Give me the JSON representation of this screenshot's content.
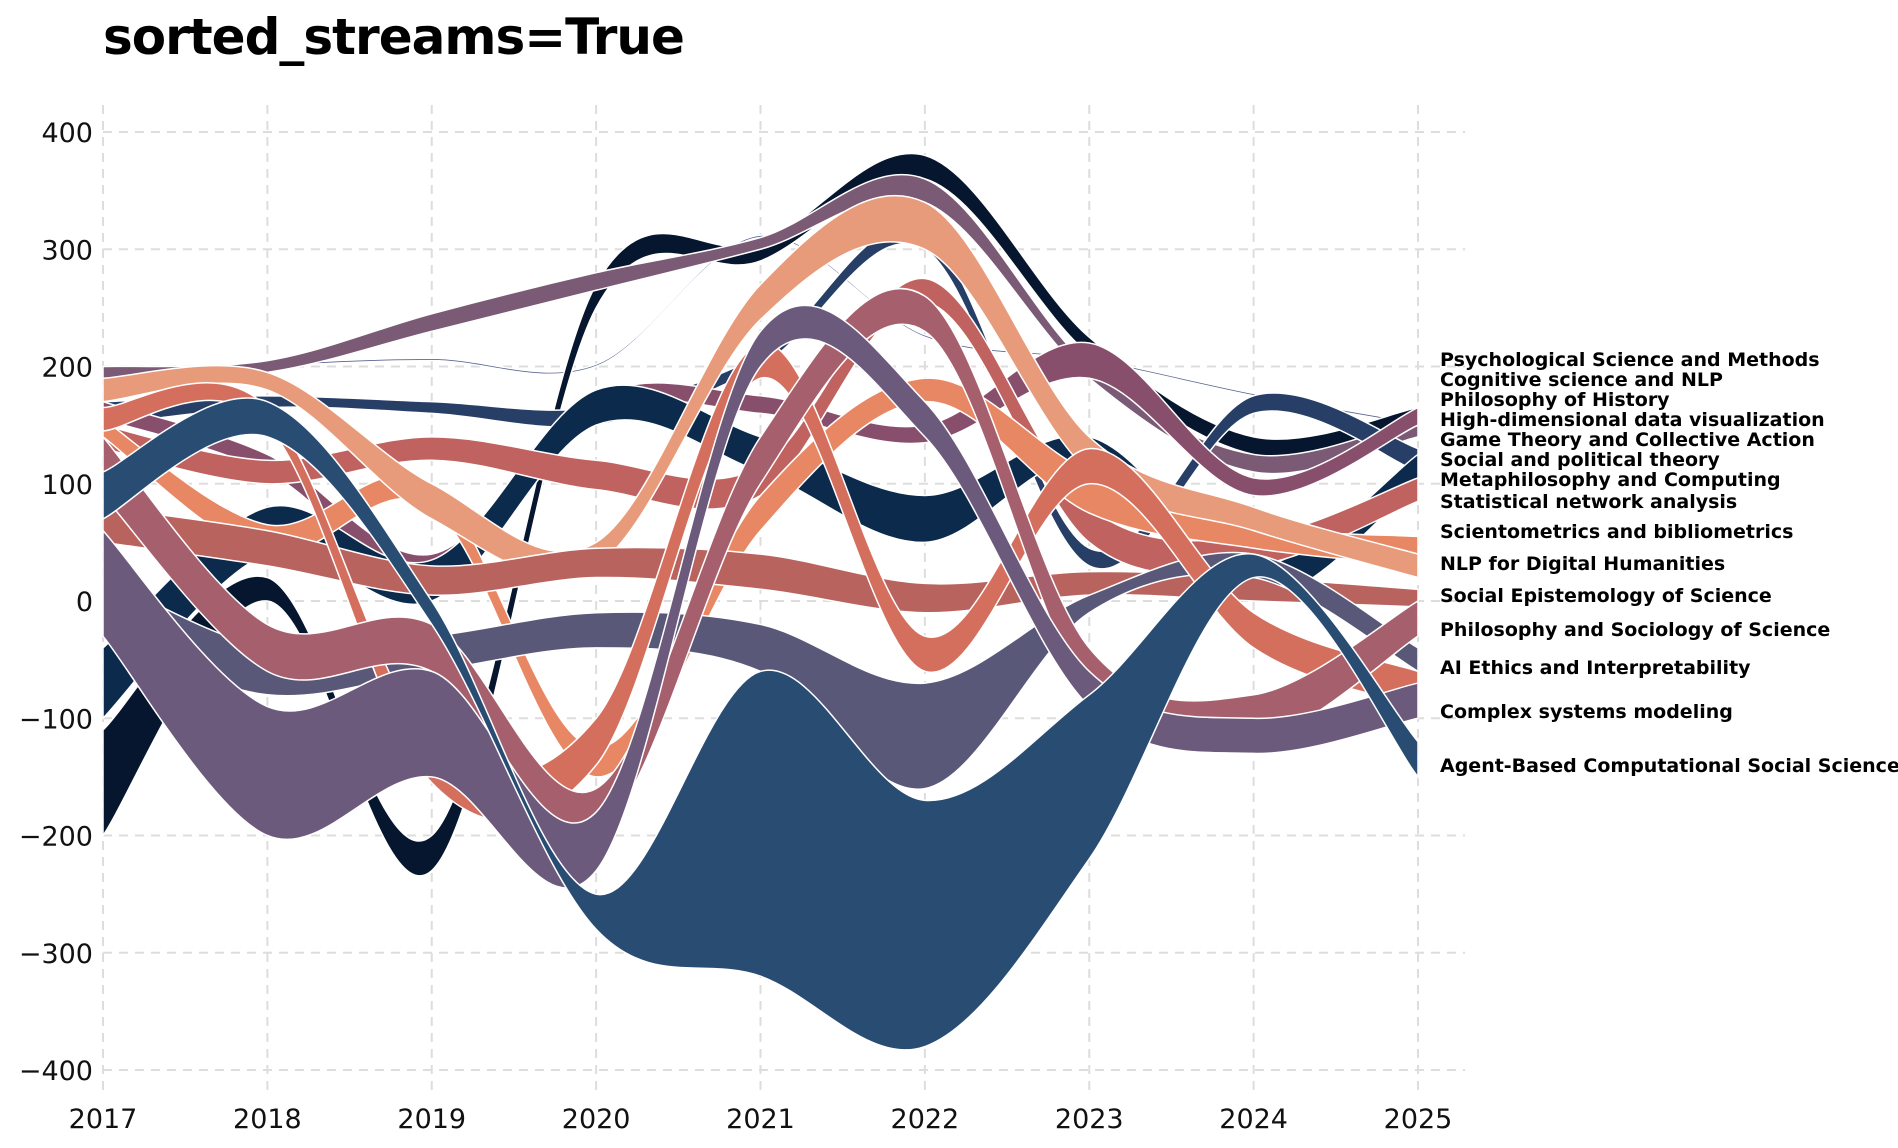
{
  "title": "sorted_streams=True",
  "chart_data": {
    "type": "area",
    "subtype": "streamgraph (sorted streams, smoothed bands)",
    "title": "sorted_streams=True",
    "xlabel": "",
    "ylabel": "",
    "x": [
      2017,
      2018,
      2019,
      2020,
      2021,
      2022,
      2023,
      2024,
      2025
    ],
    "xlim": [
      2017,
      2025.3
    ],
    "ylim": [
      -420,
      420
    ],
    "x_ticks": [
      "2017",
      "2018",
      "2019",
      "2020",
      "2021",
      "2022",
      "2023",
      "2024",
      "2025"
    ],
    "y_ticks": [
      400,
      300,
      200,
      100,
      0,
      -100,
      -200,
      -300,
      -400
    ],
    "y_tick_labels": [
      "400",
      "300",
      "200",
      "100",
      "0",
      "−100",
      "−200",
      "−300",
      "−400"
    ],
    "grid": true,
    "legend": "direct labels at right end of streams",
    "series": [
      {
        "name": "Psychological Science and Methods",
        "color": "#5b6690",
        "lower": [
          190,
          200,
          205,
          200,
          310,
          225,
          205,
          175,
          150
        ],
        "upper": [
          192,
          202,
          207,
          202,
          312,
          227,
          207,
          177,
          152
        ]
      },
      {
        "name": "Cognitive science and NLP",
        "color": "#05162e",
        "lower": [
          -200,
          0,
          -230,
          250,
          290,
          360,
          210,
          125,
          150
        ],
        "upper": [
          -110,
          20,
          -200,
          270,
          305,
          380,
          225,
          140,
          165
        ]
      },
      {
        "name": "Philosophy of History",
        "color": "#7a5a74",
        "lower": [
          190,
          195,
          230,
          265,
          300,
          340,
          190,
          110,
          140
        ],
        "upper": [
          200,
          205,
          245,
          280,
          310,
          360,
          200,
          125,
          155
        ]
      },
      {
        "name": "High-dimensional data visualization",
        "color": "#273f66",
        "lower": [
          150,
          165,
          160,
          150,
          200,
          300,
          30,
          160,
          110
        ],
        "upper": [
          170,
          175,
          170,
          165,
          210,
          315,
          45,
          175,
          130
        ]
      },
      {
        "name": "Game Theory and Collective Action",
        "color": "#884f6c",
        "lower": [
          155,
          110,
          20,
          160,
          160,
          135,
          190,
          90,
          150
        ],
        "upper": [
          170,
          125,
          40,
          175,
          175,
          150,
          220,
          105,
          165
        ]
      },
      {
        "name": "Social and political theory",
        "color": "#0c2a4c",
        "lower": [
          -100,
          40,
          0,
          150,
          110,
          50,
          120,
          0,
          100
        ],
        "upper": [
          -40,
          80,
          35,
          180,
          140,
          90,
          140,
          30,
          125
        ]
      },
      {
        "name": "Metaphilosophy and Computing",
        "color": "#c0625f",
        "lower": [
          130,
          100,
          120,
          95,
          90,
          255,
          50,
          30,
          85
        ],
        "upper": [
          150,
          120,
          140,
          120,
          115,
          275,
          80,
          55,
          105
        ]
      },
      {
        "name": "Statistical network analysis",
        "color": "#e88763",
        "lower": [
          140,
          40,
          80,
          -150,
          60,
          170,
          75,
          45,
          30
        ],
        "upper": [
          155,
          65,
          100,
          -125,
          90,
          190,
          110,
          65,
          55
        ]
      },
      {
        "name": "Scientometrics and bibliometrics",
        "color": "#e89b7a",
        "lower": [
          170,
          180,
          70,
          30,
          240,
          300,
          110,
          60,
          20
        ],
        "upper": [
          190,
          195,
          100,
          50,
          270,
          340,
          140,
          80,
          40
        ]
      },
      {
        "name": "NLP for Digital Humanities",
        "color": "#b8635e",
        "lower": [
          50,
          30,
          5,
          20,
          10,
          -10,
          5,
          0,
          -5
        ],
        "upper": [
          80,
          60,
          30,
          45,
          40,
          15,
          25,
          20,
          10
        ]
      },
      {
        "name": "Social Epistemology of Science",
        "color": "#5a5878",
        "lower": [
          -30,
          -80,
          -60,
          -40,
          -60,
          -160,
          -10,
          20,
          -60
        ],
        "upper": [
          20,
          -40,
          -30,
          -10,
          -20,
          -70,
          5,
          40,
          -40
        ]
      },
      {
        "name": "Philosophy and Sociology of Science",
        "color": "#d46f5e",
        "lower": [
          145,
          150,
          -155,
          -140,
          190,
          -60,
          100,
          -40,
          -90
        ],
        "upper": [
          165,
          165,
          -120,
          -100,
          220,
          -30,
          130,
          -10,
          -60
        ]
      },
      {
        "name": "AI Ethics and Interpretability",
        "color": "#a65f6d",
        "lower": [
          90,
          -60,
          -60,
          -200,
          100,
          230,
          -80,
          -120,
          -30
        ],
        "upper": [
          140,
          -20,
          -20,
          -160,
          140,
          260,
          -40,
          -80,
          0
        ]
      },
      {
        "name": "Complex systems modeling",
        "color": "#6c5a7c",
        "lower": [
          -30,
          -200,
          -150,
          -230,
          200,
          140,
          -90,
          -130,
          -100
        ],
        "upper": [
          60,
          -90,
          -60,
          -180,
          230,
          170,
          -60,
          -100,
          -70
        ]
      },
      {
        "name": "Agent-Based Computational Social Science",
        "color": "#294c73",
        "lower": [
          70,
          140,
          -20,
          -280,
          -320,
          -380,
          -220,
          20,
          -150
        ],
        "upper": [
          110,
          170,
          0,
          -250,
          -60,
          -170,
          -80,
          40,
          -120
        ]
      }
    ]
  }
}
